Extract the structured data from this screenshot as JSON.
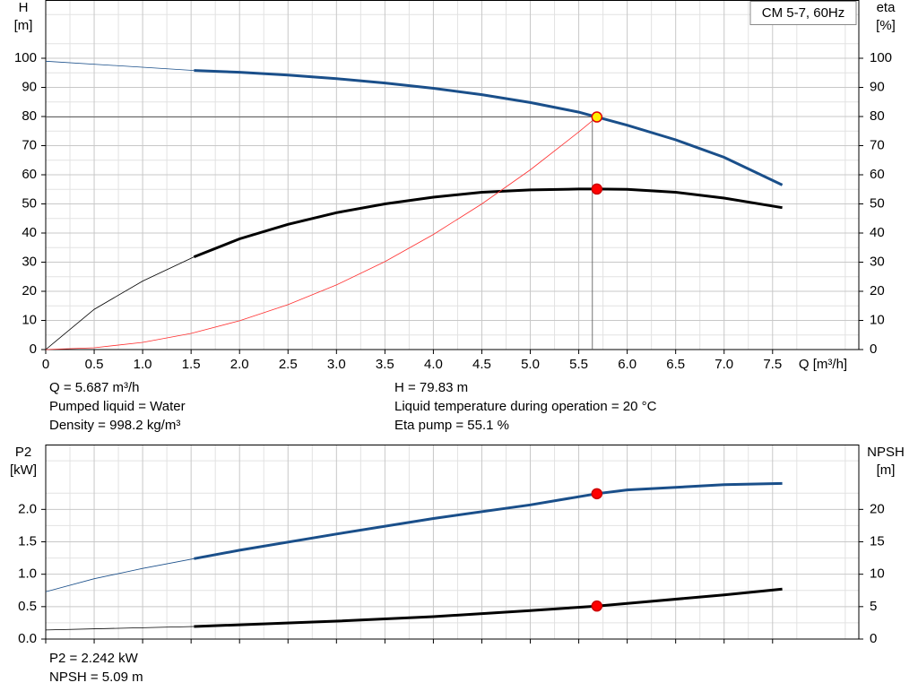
{
  "chart_data": [
    {
      "type": "line",
      "label_box": "CM 5-7, 60Hz",
      "y_label": [
        "H",
        "[m]"
      ],
      "y2_label": [
        "eta",
        "[%]"
      ],
      "x_label": "Q [m³/h]",
      "xlim": [
        0,
        8.39
      ],
      "ylim": [
        0,
        120
      ],
      "y2lim": [
        0,
        120
      ],
      "xticks": [
        0,
        0.5,
        {
          "value": 1,
          "label": "1.0"
        },
        1.5,
        {
          "value": 2,
          "label": "2.0"
        },
        2.5,
        {
          "value": 3,
          "label": "3.0"
        },
        3.5,
        {
          "value": 4,
          "label": "4.0"
        },
        4.5,
        {
          "value": 5,
          "label": "5.0"
        },
        5.5,
        {
          "value": 6,
          "label": "6.0"
        },
        6.5,
        {
          "value": 7,
          "label": "7.0"
        },
        7.5
      ],
      "xtick_labels": true,
      "yticks": [
        0,
        10,
        20,
        30,
        40,
        50,
        60,
        70,
        80,
        90,
        100
      ],
      "y2ticks": [
        0,
        10,
        20,
        30,
        40,
        50,
        60,
        70,
        80,
        90,
        100
      ],
      "grid": true,
      "thin_below": 1.53,
      "series": [
        {
          "color": "#1a4f8a",
          "x": [
            0,
            1.53,
            2,
            2.5,
            3,
            3.5,
            4,
            4.5,
            5,
            5.5,
            5.687,
            6,
            6.5,
            7,
            7.6
          ],
          "values": [
            99,
            95.8,
            95.2,
            94.2,
            93,
            91.5,
            89.7,
            87.5,
            84.8,
            81.5,
            79.83,
            77,
            72,
            66,
            56.5
          ]
        },
        {
          "color": "#000000",
          "axis": "y2",
          "x": [
            0,
            0.5,
            1,
            1.53,
            2,
            2.5,
            3,
            3.5,
            4,
            4.5,
            5,
            5.5,
            5.687,
            6,
            6.5,
            7,
            7.6
          ],
          "values": [
            0,
            13.8,
            23.5,
            31.8,
            38,
            43,
            47,
            50,
            52.3,
            54,
            54.8,
            55.1,
            55.1,
            55,
            54,
            52,
            48.7
          ]
        },
        {
          "color": "#ff3030",
          "thin": true,
          "x": [
            0,
            0.5,
            1,
            1.5,
            2,
            2.5,
            3,
            3.5,
            4,
            4.5,
            5,
            5.5,
            5.687
          ],
          "values": [
            0,
            0.62,
            2.47,
            5.55,
            9.87,
            15.4,
            22.2,
            30.2,
            39.5,
            50,
            61.7,
            74.7,
            79.83
          ]
        }
      ],
      "points": [
        {
          "x": 5.687,
          "y": 79.83,
          "color": "#ffee00",
          "ref_lines": true
        },
        {
          "x": 5.687,
          "y": 55.1,
          "color": "#ff0000",
          "axis": "y2"
        }
      ],
      "notes_left": [
        "Q = 5.687 m³/h",
        "Pumped liquid = Water",
        "Density = 998.2 kg/m³"
      ],
      "notes_right": [
        "H = 79.83 m",
        "Liquid temperature during operation = 20 °C",
        "Eta pump = 55.1 %"
      ]
    },
    {
      "type": "line",
      "y_label": [
        "P2",
        "[kW]"
      ],
      "y2_label": [
        "NPSH",
        "[m]"
      ],
      "xlim": [
        0,
        8.39
      ],
      "ylim": [
        0,
        3
      ],
      "y2lim": [
        0,
        30
      ],
      "xticks": [
        0,
        0.5,
        1,
        1.5,
        2,
        2.5,
        3,
        3.5,
        4,
        4.5,
        5,
        5.5,
        6,
        6.5,
        7,
        7.5
      ],
      "xtick_labels": false,
      "yticks": [
        {
          "value": 0,
          "label": "0.0"
        },
        0.5,
        {
          "value": 1,
          "label": "1.0"
        },
        1.5,
        {
          "value": 2,
          "label": "2.0"
        }
      ],
      "y2ticks": [
        0,
        5,
        10,
        15,
        20
      ],
      "grid": true,
      "thin_below": 1.53,
      "series": [
        {
          "color": "#1a4f8a",
          "x": [
            0,
            0.5,
            1,
            1.53,
            2,
            3,
            4,
            5,
            5.687,
            6,
            7,
            7.6
          ],
          "values": [
            0.73,
            0.93,
            1.09,
            1.24,
            1.37,
            1.62,
            1.86,
            2.07,
            2.242,
            2.3,
            2.38,
            2.4
          ]
        },
        {
          "color": "#000000",
          "axis": "y2",
          "x": [
            0,
            1.53,
            3,
            4,
            5,
            5.687,
            6,
            7,
            7.6
          ],
          "values": [
            1.4,
            1.93,
            2.76,
            3.45,
            4.4,
            5.09,
            5.5,
            6.8,
            7.7
          ]
        }
      ],
      "points": [
        {
          "x": 5.687,
          "y": 2.242,
          "color": "#ff0000"
        },
        {
          "x": 5.687,
          "y": 5.09,
          "color": "#ff0000",
          "axis": "y2"
        }
      ],
      "notes_left": [
        "P2 = 2.242 kW",
        "NPSH = 5.09 m"
      ]
    }
  ]
}
